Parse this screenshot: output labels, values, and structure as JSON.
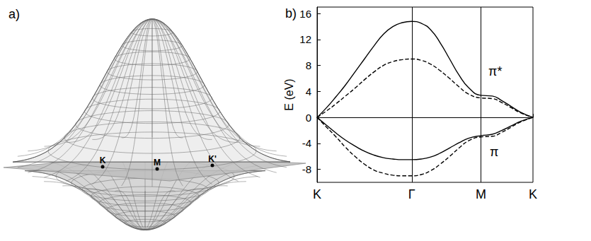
{
  "panel_a": {
    "label": "a)",
    "points": [
      {
        "label": "K"
      },
      {
        "label": "M"
      },
      {
        "label": "K'"
      }
    ]
  },
  "chart_data": {
    "type": "line",
    "panel_label": "b)",
    "ylabel": "E (eV)",
    "xlim": [
      0,
      2.28
    ],
    "xticks": [
      {
        "value": 0,
        "label": "K"
      },
      {
        "value": 1,
        "label": "Γ"
      },
      {
        "value": 1.73,
        "label": "M"
      },
      {
        "value": 2.28,
        "label": "K"
      }
    ],
    "ylim": [
      -10,
      17
    ],
    "yticks": [
      -8,
      -4,
      0,
      4,
      8,
      12,
      16
    ],
    "x": [
      0,
      0.1,
      0.2,
      0.3,
      0.4,
      0.5,
      0.6,
      0.7,
      0.8,
      0.9,
      1,
      1.1,
      1.2,
      1.3,
      1.4,
      1.5,
      1.6,
      1.73,
      1.85,
      1.95,
      2.05,
      2.15,
      2.28
    ],
    "series": [
      {
        "color": "#000000",
        "line_style": "solid",
        "values": [
          0,
          1.5,
          3.2,
          5.0,
          7.0,
          9.0,
          11.0,
          12.8,
          14.0,
          14.6,
          14.8,
          14.5,
          13.5,
          11.5,
          9.0,
          6.5,
          4.6,
          3.4,
          3.3,
          2.6,
          1.7,
          0.8,
          0
        ]
      },
      {
        "color": "#000000",
        "line_style": "dashed",
        "values": [
          0,
          1.0,
          2.1,
          3.3,
          4.5,
          5.8,
          7.0,
          8.0,
          8.6,
          8.9,
          9.0,
          8.8,
          8.2,
          7.2,
          6.0,
          4.7,
          3.6,
          3.0,
          2.9,
          2.3,
          1.5,
          0.7,
          0
        ]
      },
      {
        "color": "#000000",
        "line_style": "solid",
        "values": [
          0,
          -1.2,
          -2.4,
          -3.5,
          -4.4,
          -5.2,
          -5.8,
          -6.2,
          -6.4,
          -6.5,
          -6.5,
          -6.4,
          -6.1,
          -5.5,
          -4.7,
          -3.9,
          -3.2,
          -2.8,
          -2.6,
          -2.0,
          -1.3,
          -0.6,
          0
        ]
      },
      {
        "color": "#000000",
        "line_style": "dashed",
        "values": [
          0,
          -1.5,
          -3.0,
          -4.6,
          -6.0,
          -7.2,
          -8.1,
          -8.6,
          -8.9,
          -9.0,
          -9.0,
          -8.8,
          -8.2,
          -7.2,
          -6.0,
          -4.7,
          -3.6,
          -3.0,
          -2.9,
          -2.3,
          -1.5,
          -0.7,
          0
        ]
      }
    ],
    "reference_lines": [
      {
        "x": 1,
        "line_style": "solid"
      },
      {
        "x": 1.73,
        "line_style": "solid"
      },
      {
        "y": 0,
        "line_style": "dotted"
      }
    ],
    "annotations": [
      {
        "text": "π*"
      },
      {
        "text": "π"
      }
    ]
  }
}
